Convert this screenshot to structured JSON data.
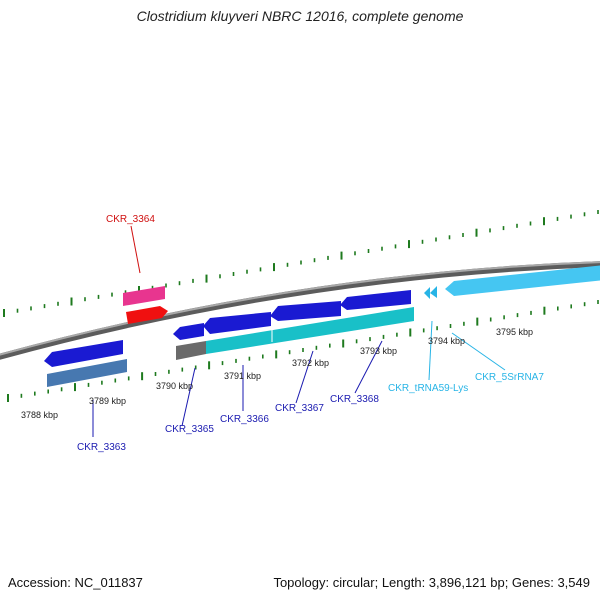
{
  "title": "Clostridium kluyveri NBRC 12016, complete genome",
  "footer": {
    "accession": "Accession: NC_011837",
    "summary": "Topology: circular; Length: 3,896,121 bp; Genes: 3,549"
  },
  "colors": {
    "backbone": "#7a7a7a",
    "tick": "#1e7a1e",
    "label_red": "#d01010",
    "label_blue": "#1a1ab0",
    "label_cyan": "#27b4e6",
    "gene_blue": "#1a1ad2",
    "gene_cyan": "#19c0c8",
    "gene_steel": "#4778b0",
    "gene_gray": "#6a6a6a",
    "gene_pink": "#e8358f",
    "gene_red": "#f01010",
    "gene_skyblue": "#45c6f2"
  },
  "tick_labels": [
    "3788 kbp",
    "3789 kbp",
    "3790 kbp",
    "3791 kbp",
    "3792 kbp",
    "3793 kbp",
    "3794 kbp",
    "3795 kbp"
  ],
  "gene_labels": [
    "CKR_3364",
    "CKR_3363",
    "CKR_3365",
    "CKR_3366",
    "CKR_3367",
    "CKR_3368",
    "CKR_tRNA59-Lys",
    "CKR_5SrRNA7"
  ]
}
